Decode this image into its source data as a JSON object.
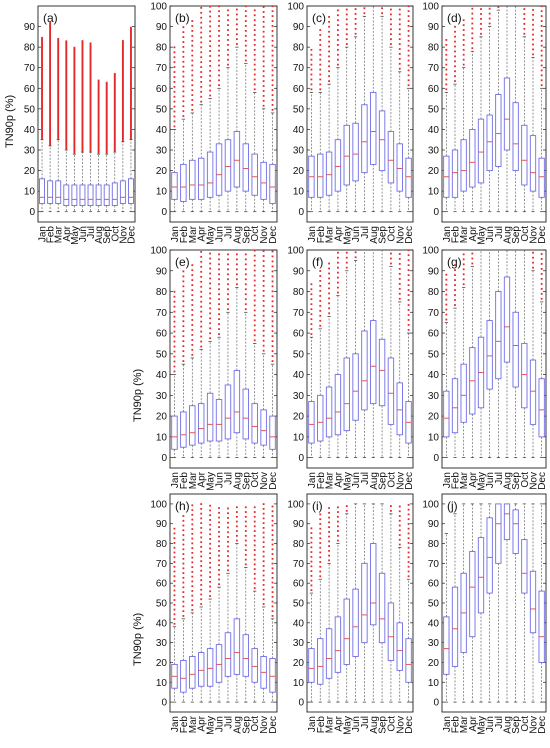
{
  "figure": {
    "ylabel": "TN90p (%)",
    "months": [
      "Jan",
      "Feb",
      "Mar",
      "Apr",
      "May",
      "Jun",
      "Jul",
      "Aug",
      "Sep",
      "Oct",
      "Nov",
      "Dec"
    ]
  },
  "chart_data": [
    {
      "type": "box",
      "panel_label": "(a)",
      "ylabel": "TN90p (%)",
      "ylim": [
        -5,
        100
      ],
      "yticks": [
        0,
        10,
        20,
        30,
        40,
        50,
        60,
        70,
        80,
        90
      ],
      "categories": [
        "Jan",
        "Feb",
        "Mar",
        "Apr",
        "May",
        "Jun",
        "Jul",
        "Aug",
        "Sep",
        "Oct",
        "Nov",
        "Dec"
      ],
      "q1": [
        4,
        4,
        4,
        3,
        3,
        3,
        3,
        3,
        3,
        3,
        4,
        4
      ],
      "median": [
        7,
        7,
        7,
        6,
        6,
        6,
        6,
        6,
        6,
        6,
        7,
        7
      ],
      "q3": [
        16,
        15,
        15,
        13,
        13,
        13,
        13,
        13,
        13,
        14,
        15,
        16
      ],
      "whisker_low": [
        0,
        0,
        0,
        0,
        0,
        0,
        0,
        0,
        0,
        0,
        0,
        0
      ],
      "whisker_high": [
        35,
        32,
        35,
        30,
        28,
        29,
        29,
        28,
        28,
        29,
        34,
        35
      ],
      "outlier_max": [
        85,
        92,
        84,
        83,
        80,
        83,
        82,
        64,
        63,
        67,
        83,
        90
      ]
    },
    {
      "type": "box",
      "panel_label": "(b)",
      "ylim": [
        -5,
        100
      ],
      "yticks": [
        0,
        10,
        20,
        30,
        40,
        50,
        60,
        70,
        80,
        90,
        100
      ],
      "categories": [
        "Jan",
        "Feb",
        "Mar",
        "Apr",
        "May",
        "Jun",
        "Jul",
        "Aug",
        "Sep",
        "Oct",
        "Nov",
        "Dec"
      ],
      "q1": [
        6,
        5,
        6,
        6,
        7,
        8,
        10,
        12,
        10,
        8,
        6,
        4
      ],
      "median": [
        12,
        12,
        13,
        13,
        14,
        18,
        22,
        25,
        21,
        17,
        14,
        12
      ],
      "q3": [
        19,
        23,
        25,
        26,
        29,
        33,
        35,
        39,
        33,
        28,
        24,
        23
      ],
      "whisker_low": [
        0,
        0,
        0,
        0,
        0,
        0,
        0,
        0,
        0,
        0,
        0,
        0
      ],
      "whisker_high": [
        40,
        45,
        48,
        52,
        55,
        60,
        70,
        80,
        72,
        58,
        50,
        48
      ],
      "outlier_max": [
        80,
        90,
        95,
        100,
        100,
        100,
        100,
        100,
        100,
        100,
        100,
        100
      ]
    },
    {
      "type": "box",
      "panel_label": "(c)",
      "ylim": [
        -5,
        100
      ],
      "yticks": [
        0,
        10,
        20,
        30,
        40,
        50,
        60,
        70,
        80,
        90,
        100
      ],
      "categories": [
        "Jan",
        "Feb",
        "Mar",
        "Apr",
        "May",
        "Jun",
        "Jul",
        "Aug",
        "Sep",
        "Oct",
        "Nov",
        "Dec"
      ],
      "q1": [
        7,
        7,
        8,
        10,
        13,
        15,
        19,
        23,
        20,
        14,
        10,
        7
      ],
      "median": [
        17,
        17,
        18,
        22,
        27,
        28,
        34,
        39,
        35,
        25,
        21,
        17
      ],
      "q3": [
        27,
        28,
        29,
        35,
        42,
        43,
        52,
        58,
        49,
        39,
        33,
        26
      ],
      "whisker_low": [
        0,
        0,
        0,
        0,
        0,
        0,
        0,
        0,
        0,
        0,
        0,
        0
      ],
      "whisker_high": [
        58,
        58,
        62,
        70,
        80,
        85,
        95,
        100,
        95,
        80,
        68,
        60
      ],
      "outlier_max": [
        80,
        90,
        95,
        100,
        100,
        100,
        100,
        100,
        100,
        100,
        100,
        100
      ]
    },
    {
      "type": "box",
      "panel_label": "(d)",
      "ylim": [
        -5,
        100
      ],
      "yticks": [
        0,
        10,
        20,
        30,
        40,
        50,
        60,
        70,
        80,
        90,
        100
      ],
      "categories": [
        "Jan",
        "Feb",
        "Mar",
        "Apr",
        "May",
        "Jun",
        "Jul",
        "Aug",
        "Sep",
        "Oct",
        "Nov",
        "Dec"
      ],
      "q1": [
        7,
        7,
        10,
        12,
        14,
        20,
        22,
        30,
        20,
        13,
        10,
        7
      ],
      "median": [
        17,
        19,
        20,
        24,
        29,
        34,
        38,
        45,
        33,
        25,
        19,
        17
      ],
      "q3": [
        27,
        30,
        35,
        40,
        45,
        47,
        57,
        65,
        53,
        42,
        37,
        26
      ],
      "whisker_low": [
        0,
        0,
        0,
        0,
        0,
        0,
        0,
        0,
        0,
        0,
        0,
        0
      ],
      "whisker_high": [
        58,
        62,
        70,
        78,
        85,
        90,
        98,
        100,
        100,
        85,
        75,
        60
      ],
      "outlier_max": [
        85,
        90,
        95,
        100,
        100,
        100,
        100,
        100,
        100,
        100,
        100,
        100
      ]
    },
    {
      "type": "box",
      "panel_label": "(e)",
      "ylabel": "TN90p (%)",
      "ylim": [
        -5,
        100
      ],
      "yticks": [
        0,
        10,
        20,
        30,
        40,
        50,
        60,
        70,
        80,
        90,
        100
      ],
      "categories": [
        "Jan",
        "Feb",
        "Mar",
        "Apr",
        "May",
        "Jun",
        "Jul",
        "Aug",
        "Sep",
        "Oct",
        "Nov",
        "Dec"
      ],
      "q1": [
        4,
        5,
        6,
        7,
        8,
        8,
        9,
        12,
        9,
        7,
        6,
        4
      ],
      "median": [
        10,
        11,
        12,
        14,
        16,
        16,
        19,
        22,
        19,
        15,
        13,
        10
      ],
      "q3": [
        20,
        22,
        25,
        26,
        31,
        28,
        35,
        42,
        33,
        26,
        23,
        20
      ],
      "whisker_low": [
        0,
        0,
        0,
        0,
        0,
        0,
        0,
        0,
        0,
        0,
        0,
        0
      ],
      "whisker_high": [
        40,
        45,
        48,
        52,
        56,
        58,
        70,
        82,
        70,
        55,
        50,
        45
      ],
      "outlier_max": [
        80,
        90,
        95,
        100,
        100,
        100,
        100,
        100,
        100,
        100,
        100,
        100
      ]
    },
    {
      "type": "box",
      "panel_label": "(f)",
      "ylim": [
        -5,
        100
      ],
      "yticks": [
        0,
        10,
        20,
        30,
        40,
        50,
        60,
        70,
        80,
        90,
        100
      ],
      "categories": [
        "Jan",
        "Feb",
        "Mar",
        "Apr",
        "May",
        "Jun",
        "Jul",
        "Aug",
        "Sep",
        "Oct",
        "Nov",
        "Dec"
      ],
      "q1": [
        7,
        8,
        10,
        11,
        13,
        18,
        23,
        26,
        25,
        16,
        11,
        7
      ],
      "median": [
        16,
        17,
        19,
        22,
        26,
        32,
        37,
        44,
        42,
        31,
        23,
        17
      ],
      "q3": [
        27,
        30,
        34,
        40,
        48,
        50,
        61,
        66,
        57,
        48,
        36,
        27
      ],
      "whisker_low": [
        0,
        0,
        0,
        0,
        0,
        0,
        0,
        0,
        0,
        0,
        0,
        0
      ],
      "whisker_high": [
        58,
        62,
        68,
        78,
        90,
        95,
        100,
        100,
        100,
        92,
        75,
        60
      ],
      "outlier_max": [
        85,
        90,
        95,
        100,
        100,
        100,
        100,
        100,
        100,
        100,
        100,
        100
      ]
    },
    {
      "type": "box",
      "panel_label": "(g)",
      "ylim": [
        -5,
        100
      ],
      "yticks": [
        0,
        10,
        20,
        30,
        40,
        50,
        60,
        70,
        80,
        90,
        100
      ],
      "categories": [
        "Jan",
        "Feb",
        "Mar",
        "Apr",
        "May",
        "Jun",
        "Jul",
        "Aug",
        "Sep",
        "Oct",
        "Nov",
        "Dec"
      ],
      "q1": [
        10,
        12,
        17,
        21,
        24,
        33,
        38,
        46,
        34,
        24,
        16,
        10
      ],
      "median": [
        19,
        24,
        30,
        37,
        41,
        49,
        56,
        63,
        54,
        40,
        32,
        23
      ],
      "q3": [
        32,
        38,
        45,
        53,
        58,
        66,
        80,
        87,
        70,
        55,
        47,
        38
      ],
      "whisker_low": [
        0,
        0,
        0,
        0,
        0,
        0,
        0,
        0,
        0,
        0,
        0,
        0
      ],
      "whisker_high": [
        65,
        72,
        82,
        92,
        100,
        100,
        100,
        100,
        100,
        100,
        90,
        75
      ],
      "outlier_max": [
        90,
        95,
        100,
        100,
        100,
        100,
        100,
        100,
        100,
        100,
        100,
        100
      ]
    },
    {
      "type": "box",
      "panel_label": "(h)",
      "ylabel": "TN90p (%)",
      "ylim": [
        -5,
        105
      ],
      "yticks": [
        0,
        10,
        20,
        30,
        40,
        50,
        60,
        70,
        80,
        90,
        100
      ],
      "categories": [
        "Jan",
        "Feb",
        "Mar",
        "Apr",
        "May",
        "Jun",
        "Jul",
        "Aug",
        "Sep",
        "Oct",
        "Nov",
        "Dec"
      ],
      "q1": [
        7,
        5,
        7,
        8,
        8,
        10,
        13,
        14,
        13,
        10,
        7,
        5
      ],
      "median": [
        13,
        12,
        14,
        16,
        17,
        19,
        22,
        25,
        22,
        18,
        15,
        13
      ],
      "q3": [
        19,
        21,
        23,
        25,
        27,
        29,
        35,
        42,
        34,
        27,
        23,
        22
      ],
      "whisker_low": [
        0,
        0,
        0,
        0,
        0,
        0,
        0,
        0,
        0,
        0,
        0,
        0
      ],
      "whisker_high": [
        38,
        42,
        45,
        48,
        52,
        58,
        65,
        80,
        68,
        56,
        48,
        42
      ],
      "outlier_max": [
        88,
        95,
        100,
        100,
        100,
        100,
        100,
        100,
        100,
        100,
        100,
        100
      ]
    },
    {
      "type": "box",
      "panel_label": "(i)",
      "ylim": [
        -5,
        105
      ],
      "yticks": [
        0,
        10,
        20,
        30,
        40,
        50,
        60,
        70,
        80,
        90,
        100
      ],
      "categories": [
        "Jan",
        "Feb",
        "Mar",
        "Apr",
        "May",
        "Jun",
        "Jul",
        "Aug",
        "Sep",
        "Oct",
        "Nov",
        "Dec"
      ],
      "q1": [
        10,
        9,
        12,
        15,
        19,
        23,
        30,
        39,
        30,
        21,
        16,
        10
      ],
      "median": [
        17,
        18,
        22,
        26,
        32,
        38,
        44,
        50,
        42,
        33,
        26,
        19
      ],
      "q3": [
        27,
        32,
        37,
        43,
        52,
        57,
        70,
        80,
        65,
        50,
        40,
        32
      ],
      "whisker_low": [
        0,
        0,
        0,
        0,
        0,
        0,
        0,
        0,
        0,
        0,
        0,
        0
      ],
      "whisker_high": [
        55,
        62,
        70,
        80,
        95,
        100,
        100,
        100,
        100,
        95,
        78,
        62
      ],
      "outlier_max": [
        90,
        95,
        100,
        100,
        100,
        100,
        100,
        100,
        100,
        100,
        100,
        100
      ]
    },
    {
      "type": "box",
      "panel_label": "(j)",
      "ylim": [
        -5,
        105
      ],
      "yticks": [
        0,
        10,
        20,
        30,
        40,
        50,
        60,
        70,
        80,
        90,
        100
      ],
      "categories": [
        "Jan",
        "Feb",
        "Mar",
        "Apr",
        "May",
        "Jun",
        "Jul",
        "Aug",
        "Sep",
        "Oct",
        "Nov",
        "Dec"
      ],
      "q1": [
        14,
        18,
        25,
        33,
        45,
        55,
        70,
        82,
        75,
        55,
        35,
        20
      ],
      "median": [
        27,
        37,
        45,
        58,
        63,
        73,
        90,
        95,
        90,
        65,
        47,
        33
      ],
      "q3": [
        43,
        58,
        65,
        76,
        83,
        93,
        100,
        100,
        97,
        82,
        66,
        56
      ],
      "whisker_low": [
        0,
        0,
        0,
        0,
        0,
        0,
        0,
        0,
        0,
        0,
        0,
        0
      ],
      "whisker_high": [
        85,
        95,
        100,
        100,
        100,
        100,
        100,
        100,
        100,
        100,
        100,
        100
      ],
      "outlier_max": [
        null,
        null,
        null,
        null,
        null,
        null,
        null,
        null,
        null,
        null,
        null,
        null
      ]
    }
  ],
  "colors": {
    "box": "#6f6fe6",
    "median": "#e05a5a",
    "outlier": "#e22a2a",
    "axis": "#222222",
    "text": "#111111"
  }
}
